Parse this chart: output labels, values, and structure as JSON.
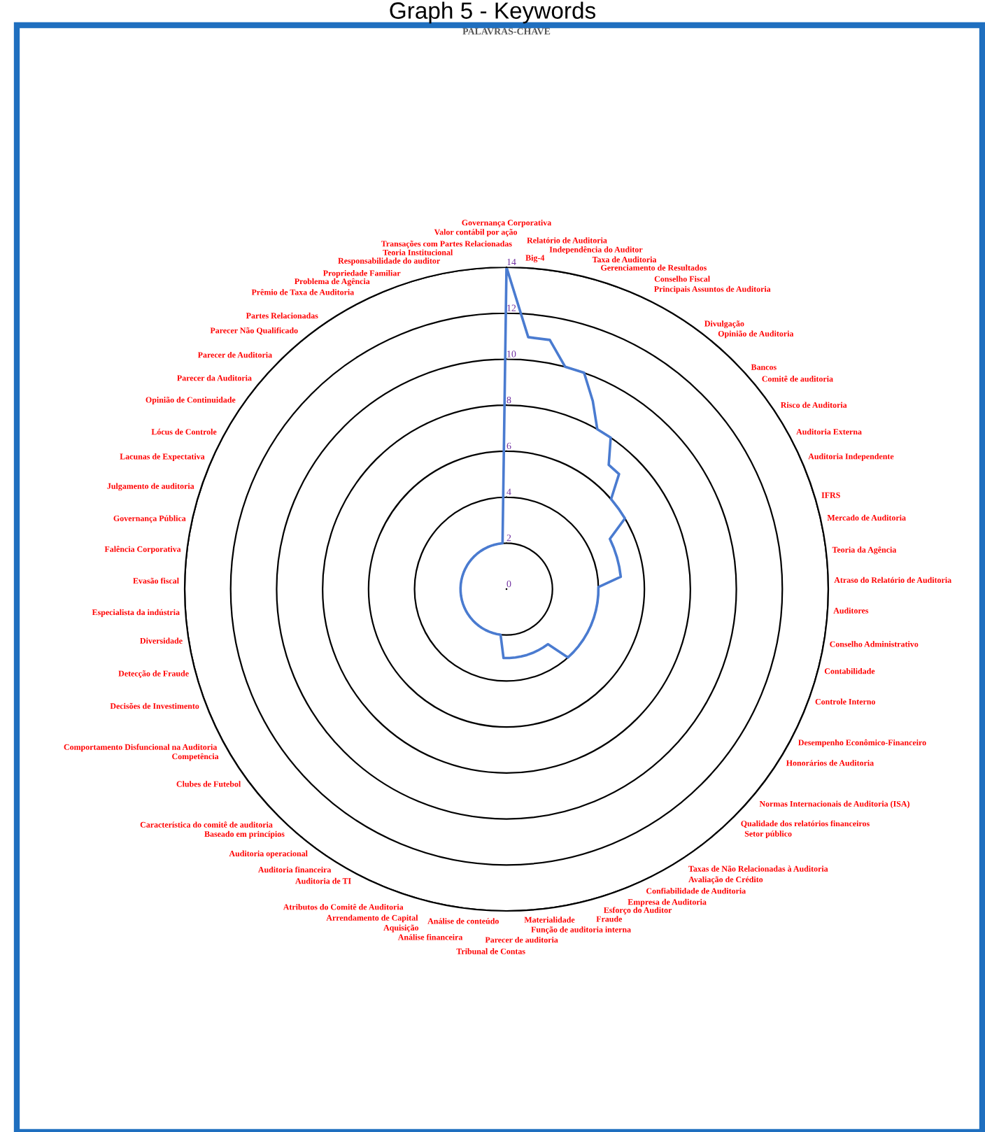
{
  "chart_data": {
    "type": "radar",
    "title": "Graph 5 - Keywords",
    "subtitle": "PALAVRAS-CHAVE",
    "categories": [
      "Governança Corporativa",
      "Big-4",
      "Relatório de Auditoria",
      "Independência do Auditor",
      "Taxa de Auditoria",
      "Gerenciamento de Resultados",
      "Conselho Fiscal",
      "Principais Assuntos de Auditoria",
      "Divulgação",
      "Opinião de Auditoria",
      "Bancos",
      "Comitê de auditoria",
      "Risco de Auditoria",
      "Auditoria Externa",
      "Auditoria Independente",
      "IFRS",
      "Mercado de Auditoria",
      "Teoria da Agência",
      "Atraso do Relatório de Auditoria",
      "Auditores",
      "Conselho Administrativo",
      "Contabilidade",
      "Controle Interno",
      "Desempenho Econômico-Financeiro",
      "Honorários de Auditoria",
      "Normas Internacionais de Auditoria (ISA)",
      "Qualidade dos relatórios financeiros",
      "Setor público",
      "Taxas de Não Relacionadas à Auditoria",
      "Avaliação de Crédito",
      "Confiabilidade de Auditoria",
      "Empresa de Auditoria",
      "Esforço do Auditor",
      "Fraude",
      "Função de auditoria interna",
      "Materialidade",
      "Parecer de auditoria",
      "Tribunal de Contas",
      "Análise de conteúdo",
      "Análise financeira",
      "Aquisição",
      "Arrendamento de Capital",
      "Atributos do Comitê de Auditoria",
      "Auditoria de TI",
      "Auditoria financeira",
      "Auditoria operacional",
      "Baseado em princípios",
      "Característica do comitê de auditoria",
      "Clubes de Futebol",
      "Competência",
      "Comportamento Disfuncional na Auditoria",
      "Decisões de Investimento",
      "Detecção de Fraude",
      "Diversidade",
      "Especialista da indústria",
      "Evasão fiscal",
      "Falência Corporativa",
      "Governança Pública",
      "Julgamento de auditoria",
      "Lacunas de Expectativa",
      "Lócus de Controle",
      "Opinião de Continuidade",
      "Parecer da Auditoria",
      "Parecer de Auditoria",
      "Parecer Não Qualificado",
      "Partes Relacionadas",
      "Prêmio de Taxa de Auditoria",
      "Problema de Agência",
      "Propriedade Familiar",
      "Responsabilidade do auditor",
      "Teoria Institucional",
      "Transações com Partes Relacionadas",
      "Valor contábil por ação"
    ],
    "series": [
      {
        "color": "#4a7bd0",
        "values": [
          14,
          11,
          11,
          10,
          10,
          9,
          8,
          8,
          7,
          7,
          6,
          6,
          6,
          5,
          5,
          5,
          5,
          5,
          4,
          4,
          4,
          4,
          4,
          4,
          4,
          4,
          4,
          4,
          4,
          3,
          3,
          3,
          3,
          3,
          3,
          3,
          3,
          3,
          2,
          2,
          2,
          2,
          2,
          2,
          2,
          2,
          2,
          2,
          2,
          2,
          2,
          2,
          2,
          2,
          2,
          2,
          2,
          2,
          2,
          2,
          2,
          2,
          2,
          2,
          2,
          2,
          2,
          2,
          2,
          2,
          2,
          2,
          2
        ]
      }
    ],
    "ylim": [
      0,
      14
    ],
    "yticks": [
      0,
      2,
      4,
      6,
      8,
      10,
      12,
      14
    ],
    "grid": "y",
    "marker": "none",
    "line_style": "solid"
  }
}
